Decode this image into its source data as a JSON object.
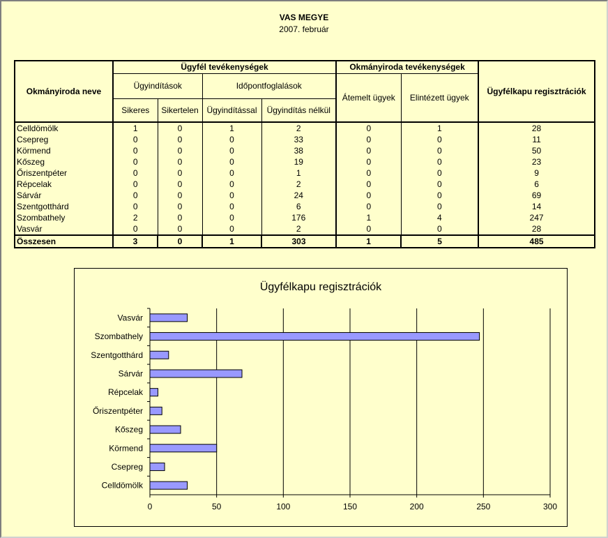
{
  "header": {
    "title": "VAS MEGYE",
    "subtitle": "2007. február"
  },
  "table": {
    "col_name": "Okmányiroda neve",
    "group_ugyfel": "Ügyfél tevékenységek",
    "sub_ugyinditasok": "Ügyindítások",
    "sub_idopont": "Időpontfoglalások",
    "col_sikeres": "Sikeres",
    "col_sikertelen": "Sikertelen",
    "col_ugyinditassal": "Ügyindítással",
    "col_ugyinditas_nelkul": "Ügyindítás nélkül",
    "group_okmany": "Okmányiroda tevékenységek",
    "col_atemelt": "Átemelt ügyek",
    "col_elintezett": "Elintézett ügyek",
    "col_ugyfelkapu": "Ügyfélkapu regisztrációk",
    "rows": [
      {
        "name": "Celldömölk",
        "sikeres": "1",
        "sikertelen": "0",
        "ugyinditassal": "1",
        "nelkul": "2",
        "atemelt": "0",
        "elintezett": "1",
        "ugyfelkapu": "28"
      },
      {
        "name": "Csepreg",
        "sikeres": "0",
        "sikertelen": "0",
        "ugyinditassal": "0",
        "nelkul": "33",
        "atemelt": "0",
        "elintezett": "0",
        "ugyfelkapu": "11"
      },
      {
        "name": "Körmend",
        "sikeres": "0",
        "sikertelen": "0",
        "ugyinditassal": "0",
        "nelkul": "38",
        "atemelt": "0",
        "elintezett": "0",
        "ugyfelkapu": "50"
      },
      {
        "name": "Kőszeg",
        "sikeres": "0",
        "sikertelen": "0",
        "ugyinditassal": "0",
        "nelkul": "19",
        "atemelt": "0",
        "elintezett": "0",
        "ugyfelkapu": "23"
      },
      {
        "name": "Őriszentpéter",
        "sikeres": "0",
        "sikertelen": "0",
        "ugyinditassal": "0",
        "nelkul": "1",
        "atemelt": "0",
        "elintezett": "0",
        "ugyfelkapu": "9"
      },
      {
        "name": "Répcelak",
        "sikeres": "0",
        "sikertelen": "0",
        "ugyinditassal": "0",
        "nelkul": "2",
        "atemelt": "0",
        "elintezett": "0",
        "ugyfelkapu": "6"
      },
      {
        "name": "Sárvár",
        "sikeres": "0",
        "sikertelen": "0",
        "ugyinditassal": "0",
        "nelkul": "24",
        "atemelt": "0",
        "elintezett": "0",
        "ugyfelkapu": "69"
      },
      {
        "name": "Szentgotthárd",
        "sikeres": "0",
        "sikertelen": "0",
        "ugyinditassal": "0",
        "nelkul": "6",
        "atemelt": "0",
        "elintezett": "0",
        "ugyfelkapu": "14"
      },
      {
        "name": "Szombathely",
        "sikeres": "2",
        "sikertelen": "0",
        "ugyinditassal": "0",
        "nelkul": "176",
        "atemelt": "1",
        "elintezett": "4",
        "ugyfelkapu": "247"
      },
      {
        "name": "Vasvár",
        "sikeres": "0",
        "sikertelen": "0",
        "ugyinditassal": "0",
        "nelkul": "2",
        "atemelt": "0",
        "elintezett": "0",
        "ugyfelkapu": "28"
      }
    ],
    "total": {
      "name": "Összesen",
      "sikeres": "3",
      "sikertelen": "0",
      "ugyinditassal": "1",
      "nelkul": "303",
      "atemelt": "1",
      "elintezett": "5",
      "ugyfelkapu": "485"
    }
  },
  "chart_data": {
    "type": "bar",
    "orientation": "horizontal",
    "title": "Ügyfélkapu regisztrációk",
    "categories": [
      "Vasvár",
      "Szombathely",
      "Szentgotthárd",
      "Sárvár",
      "Répcelak",
      "Őriszentpéter",
      "Kőszeg",
      "Körmend",
      "Csepreg",
      "Celldömölk"
    ],
    "values": [
      28,
      247,
      14,
      69,
      6,
      9,
      23,
      50,
      11,
      28
    ],
    "xlim": [
      0,
      300
    ],
    "xticks": [
      "0",
      "50",
      "100",
      "150",
      "200",
      "250",
      "300"
    ],
    "grid": true,
    "legend": "none",
    "bar_color": "#9999FF"
  }
}
